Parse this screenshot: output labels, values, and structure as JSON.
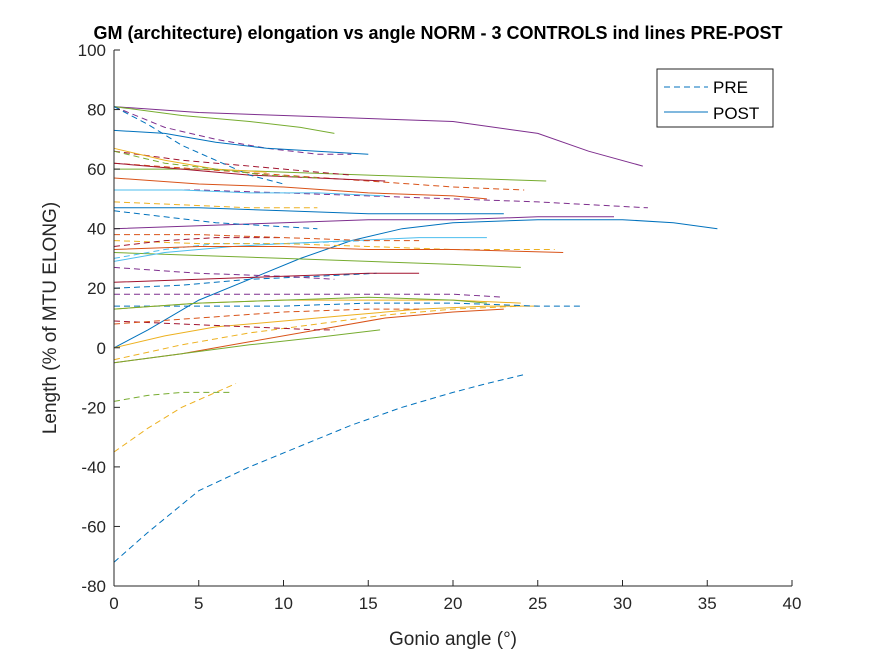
{
  "chart_data": {
    "type": "line",
    "title": "GM (architecture) elongation vs angle NORM - 3 CONTROLS ind lines PRE-POST",
    "xlabel": "Gonio angle (°)",
    "ylabel": "Length (% of MTU ELONG)",
    "xlim": [
      0,
      40
    ],
    "ylim": [
      -80,
      100
    ],
    "xticks": [
      0,
      5,
      10,
      15,
      20,
      25,
      30,
      35,
      40
    ],
    "yticks": [
      -80,
      -60,
      -40,
      -20,
      0,
      20,
      40,
      60,
      80,
      100
    ],
    "grid": false,
    "legend": {
      "position": "top-right",
      "entries": [
        {
          "label": "PRE",
          "style": "dashed",
          "color": "#0072BD"
        },
        {
          "label": "POST",
          "style": "solid",
          "color": "#0072BD"
        }
      ]
    },
    "series": [
      {
        "style": "dashed",
        "color": "#0072BD",
        "x": [
          0,
          2,
          5,
          8,
          11,
          14,
          17,
          20,
          22,
          24.2
        ],
        "y": [
          -72,
          -62,
          -48,
          -40,
          -33,
          -26,
          -20,
          -15,
          -12,
          -9
        ]
      },
      {
        "style": "dashed",
        "color": "#EDB120",
        "x": [
          0,
          2,
          4,
          6,
          7.2
        ],
        "y": [
          -35,
          -27,
          -20,
          -15,
          -12
        ]
      },
      {
        "style": "dashed",
        "color": "#77AC30",
        "x": [
          0,
          2,
          4,
          6,
          7
        ],
        "y": [
          -18,
          -16,
          -15,
          -15,
          -15
        ]
      },
      {
        "style": "solid",
        "color": "#0072BD",
        "x": [
          0,
          2,
          5,
          8,
          11,
          14,
          17,
          20,
          25,
          30,
          33,
          35.6
        ],
        "y": [
          0,
          6,
          16,
          23,
          30,
          36,
          40,
          42,
          43,
          43,
          42,
          40
        ]
      },
      {
        "style": "solid",
        "color": "#EDB120",
        "x": [
          0,
          3,
          6,
          10,
          14,
          18,
          22,
          25
        ],
        "y": [
          0,
          4,
          7,
          9,
          11,
          13,
          14,
          14
        ]
      },
      {
        "style": "solid",
        "color": "#D95319",
        "x": [
          0,
          4,
          8,
          12,
          16,
          20,
          23
        ],
        "y": [
          -5,
          -2,
          2,
          6,
          10,
          12,
          13
        ]
      },
      {
        "style": "solid",
        "color": "#77AC30",
        "x": [
          0,
          4,
          8,
          12,
          15.7
        ],
        "y": [
          -5,
          -2,
          1,
          3.5,
          6
        ]
      },
      {
        "style": "dashed",
        "color": "#EDB120",
        "x": [
          0,
          4,
          8,
          12,
          16,
          20,
          24
        ],
        "y": [
          -4,
          1,
          5,
          8,
          11,
          13,
          14
        ]
      },
      {
        "style": "dashed",
        "color": "#0072BD",
        "x": [
          0,
          5,
          10,
          15,
          20,
          25,
          27.5
        ],
        "y": [
          14,
          14,
          14,
          15,
          15,
          14,
          14
        ]
      },
      {
        "style": "dashed",
        "color": "#A2142F",
        "x": [
          0,
          4,
          8,
          12,
          13
        ],
        "y": [
          9,
          8,
          7,
          6,
          6
        ]
      },
      {
        "style": "solid",
        "color": "#EDB120",
        "x": [
          0,
          5,
          10,
          15,
          20,
          24
        ],
        "y": [
          13,
          15,
          16,
          16,
          16,
          15
        ]
      },
      {
        "style": "dashed",
        "color": "#7E2F8E",
        "x": [
          0,
          5,
          10,
          15,
          20,
          23
        ],
        "y": [
          18,
          18,
          18,
          18,
          18,
          17
        ]
      },
      {
        "style": "solid",
        "color": "#77AC30",
        "x": [
          0,
          5,
          10,
          15,
          20,
          22
        ],
        "y": [
          13,
          15,
          16,
          17,
          16,
          15
        ]
      },
      {
        "style": "dashed",
        "color": "#D95319",
        "x": [
          0,
          5,
          10,
          15,
          18
        ],
        "y": [
          8,
          10,
          12,
          13,
          13
        ]
      },
      {
        "style": "dashed",
        "color": "#0072BD",
        "x": [
          0,
          4,
          8,
          12,
          15.5
        ],
        "y": [
          20,
          21,
          23,
          24,
          25
        ]
      },
      {
        "style": "dashed",
        "color": "#7E2F8E",
        "x": [
          0,
          5,
          10,
          13
        ],
        "y": [
          27,
          25,
          24,
          23
        ]
      },
      {
        "style": "solid",
        "color": "#A2142F",
        "x": [
          0,
          5,
          10,
          15,
          18
        ],
        "y": [
          22,
          23,
          24,
          25,
          25
        ]
      },
      {
        "style": "solid",
        "color": "#77AC30",
        "x": [
          0,
          5,
          10,
          15,
          20,
          24
        ],
        "y": [
          32,
          31,
          30,
          29,
          28,
          27
        ]
      },
      {
        "style": "dashed",
        "color": "#4DBEEE",
        "x": [
          0,
          3,
          6,
          10,
          15
        ],
        "y": [
          30,
          33,
          35,
          35,
          36
        ]
      },
      {
        "style": "solid",
        "color": "#4DBEEE",
        "x": [
          0,
          3,
          7,
          10,
          14,
          18,
          22
        ],
        "y": [
          29,
          32,
          34,
          35,
          36,
          37,
          37
        ]
      },
      {
        "style": "dashed",
        "color": "#EDB120",
        "x": [
          0,
          5,
          10,
          15,
          20,
          26
        ],
        "y": [
          36,
          35,
          35,
          34,
          33,
          33
        ]
      },
      {
        "style": "solid",
        "color": "#D95319",
        "x": [
          0,
          5,
          10,
          15,
          20,
          26.5
        ],
        "y": [
          33,
          34,
          34,
          33,
          33,
          32
        ]
      },
      {
        "style": "dashed",
        "color": "#A2142F",
        "x": [
          0,
          3,
          6,
          10
        ],
        "y": [
          34,
          36,
          37,
          37
        ]
      },
      {
        "style": "solid",
        "color": "#7E2F8E",
        "x": [
          0,
          5,
          10,
          15,
          20,
          25,
          29.5
        ],
        "y": [
          40,
          41,
          42,
          43,
          43,
          44,
          44
        ]
      },
      {
        "style": "dashed",
        "color": "#D95319",
        "x": [
          0,
          5,
          10,
          15,
          18
        ],
        "y": [
          38,
          38,
          37,
          36,
          36
        ]
      },
      {
        "style": "solid",
        "color": "#0072BD",
        "x": [
          0,
          5,
          10,
          15,
          20,
          23
        ],
        "y": [
          47,
          47,
          46,
          45,
          45,
          45
        ]
      },
      {
        "style": "dashed",
        "color": "#0072BD",
        "x": [
          0,
          3,
          6,
          9,
          12
        ],
        "y": [
          46,
          44,
          42,
          41,
          40
        ]
      },
      {
        "style": "solid",
        "color": "#77AC30",
        "x": [
          0,
          5,
          10,
          15,
          20,
          25.5
        ],
        "y": [
          60,
          60,
          59,
          58,
          57,
          56
        ]
      },
      {
        "style": "dashed",
        "color": "#7E2F8E",
        "x": [
          0,
          5,
          10,
          15,
          20,
          25,
          31.5
        ],
        "y": [
          53,
          53,
          52,
          51,
          50,
          49,
          47
        ]
      },
      {
        "style": "solid",
        "color": "#D95319",
        "x": [
          0,
          5,
          10,
          15,
          20,
          22
        ],
        "y": [
          57,
          55,
          54,
          52,
          51,
          50
        ]
      },
      {
        "style": "dashed",
        "color": "#D95319",
        "x": [
          0,
          5,
          10,
          15,
          20,
          24.2
        ],
        "y": [
          62,
          60,
          58,
          56,
          54,
          53
        ]
      },
      {
        "style": "solid",
        "color": "#A2142F",
        "x": [
          0,
          4,
          8,
          12,
          16
        ],
        "y": [
          62,
          60,
          58,
          57,
          56
        ]
      },
      {
        "style": "dashed",
        "color": "#A2142F",
        "x": [
          0,
          4,
          8,
          12,
          14
        ],
        "y": [
          66,
          63,
          61,
          59,
          58
        ]
      },
      {
        "style": "solid",
        "color": "#7E2F8E",
        "x": [
          0,
          5,
          10,
          15,
          20,
          25,
          28,
          31.2
        ],
        "y": [
          81,
          79,
          78,
          77,
          76,
          72,
          66,
          61
        ]
      },
      {
        "style": "dashed",
        "color": "#7E2F8E",
        "x": [
          0,
          3,
          6,
          9,
          12,
          14
        ],
        "y": [
          81,
          74,
          70,
          67,
          65,
          65
        ]
      },
      {
        "style": "solid",
        "color": "#77AC30",
        "x": [
          0,
          4,
          8,
          11,
          13
        ],
        "y": [
          81,
          78,
          76,
          74,
          72
        ]
      },
      {
        "style": "solid",
        "color": "#0072BD",
        "x": [
          0,
          3,
          6,
          9,
          12,
          15
        ],
        "y": [
          73,
          72,
          69,
          67,
          66,
          65
        ]
      },
      {
        "style": "dashed",
        "color": "#0072BD",
        "x": [
          0,
          2,
          4,
          6,
          8,
          10
        ],
        "y": [
          81,
          75,
          68,
          63,
          58,
          55
        ]
      },
      {
        "style": "solid",
        "color": "#EDB120",
        "x": [
          0,
          3,
          6,
          9
        ],
        "y": [
          67,
          63,
          60,
          59
        ]
      },
      {
        "style": "dashed",
        "color": "#77AC30",
        "x": [
          0,
          3,
          6,
          9,
          12
        ],
        "y": [
          66,
          62,
          60,
          58,
          57
        ]
      },
      {
        "style": "solid",
        "color": "#4DBEEE",
        "x": [
          0,
          4,
          8,
          12,
          16
        ],
        "y": [
          53,
          53,
          52,
          52,
          51
        ]
      },
      {
        "style": "dashed",
        "color": "#EDB120",
        "x": [
          0,
          4,
          8,
          12
        ],
        "y": [
          49,
          48,
          47,
          47
        ]
      }
    ]
  }
}
